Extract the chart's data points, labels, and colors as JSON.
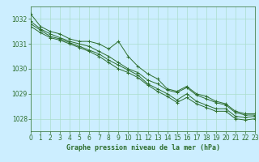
{
  "title": "Graphe pression niveau de la mer (hPa)",
  "bg_color": "#cceeff",
  "grid_color": "#aaddcc",
  "line_color": "#2d6e2d",
  "xlim": [
    0,
    23
  ],
  "ylim": [
    1027.5,
    1032.5
  ],
  "yticks": [
    1028,
    1029,
    1030,
    1031,
    1032
  ],
  "xticks": [
    0,
    1,
    2,
    3,
    4,
    5,
    6,
    7,
    8,
    9,
    10,
    11,
    12,
    13,
    14,
    15,
    16,
    17,
    18,
    19,
    20,
    21,
    22,
    23
  ],
  "series": [
    [
      1032.2,
      1031.7,
      1031.5,
      1031.4,
      1031.2,
      1031.1,
      1031.1,
      1031.0,
      1030.8,
      1031.1,
      1030.5,
      1030.1,
      1029.8,
      1029.6,
      1029.2,
      1029.1,
      1029.3,
      1029.0,
      1028.9,
      1028.7,
      1028.6,
      1028.3,
      1028.2,
      1028.2
    ],
    [
      1031.9,
      1031.6,
      1031.4,
      1031.25,
      1031.1,
      1031.0,
      1030.9,
      1030.7,
      1030.5,
      1030.25,
      1030.0,
      1029.85,
      1029.55,
      1029.4,
      1029.15,
      1029.05,
      1029.25,
      1028.95,
      1028.8,
      1028.65,
      1028.55,
      1028.25,
      1028.15,
      1028.15
    ],
    [
      1031.8,
      1031.55,
      1031.3,
      1031.2,
      1031.05,
      1030.9,
      1030.75,
      1030.6,
      1030.35,
      1030.15,
      1029.95,
      1029.75,
      1029.4,
      1029.2,
      1029.0,
      1028.75,
      1029.0,
      1028.7,
      1028.55,
      1028.4,
      1028.4,
      1028.1,
      1028.05,
      1028.1
    ],
    [
      1031.7,
      1031.45,
      1031.25,
      1031.15,
      1031.0,
      1030.85,
      1030.7,
      1030.5,
      1030.25,
      1030.0,
      1029.85,
      1029.65,
      1029.35,
      1029.1,
      1028.9,
      1028.65,
      1028.85,
      1028.6,
      1028.45,
      1028.3,
      1028.3,
      1028.0,
      1027.95,
      1028.0
    ]
  ],
  "title_fontsize": 6,
  "tick_fontsize": 5.5
}
